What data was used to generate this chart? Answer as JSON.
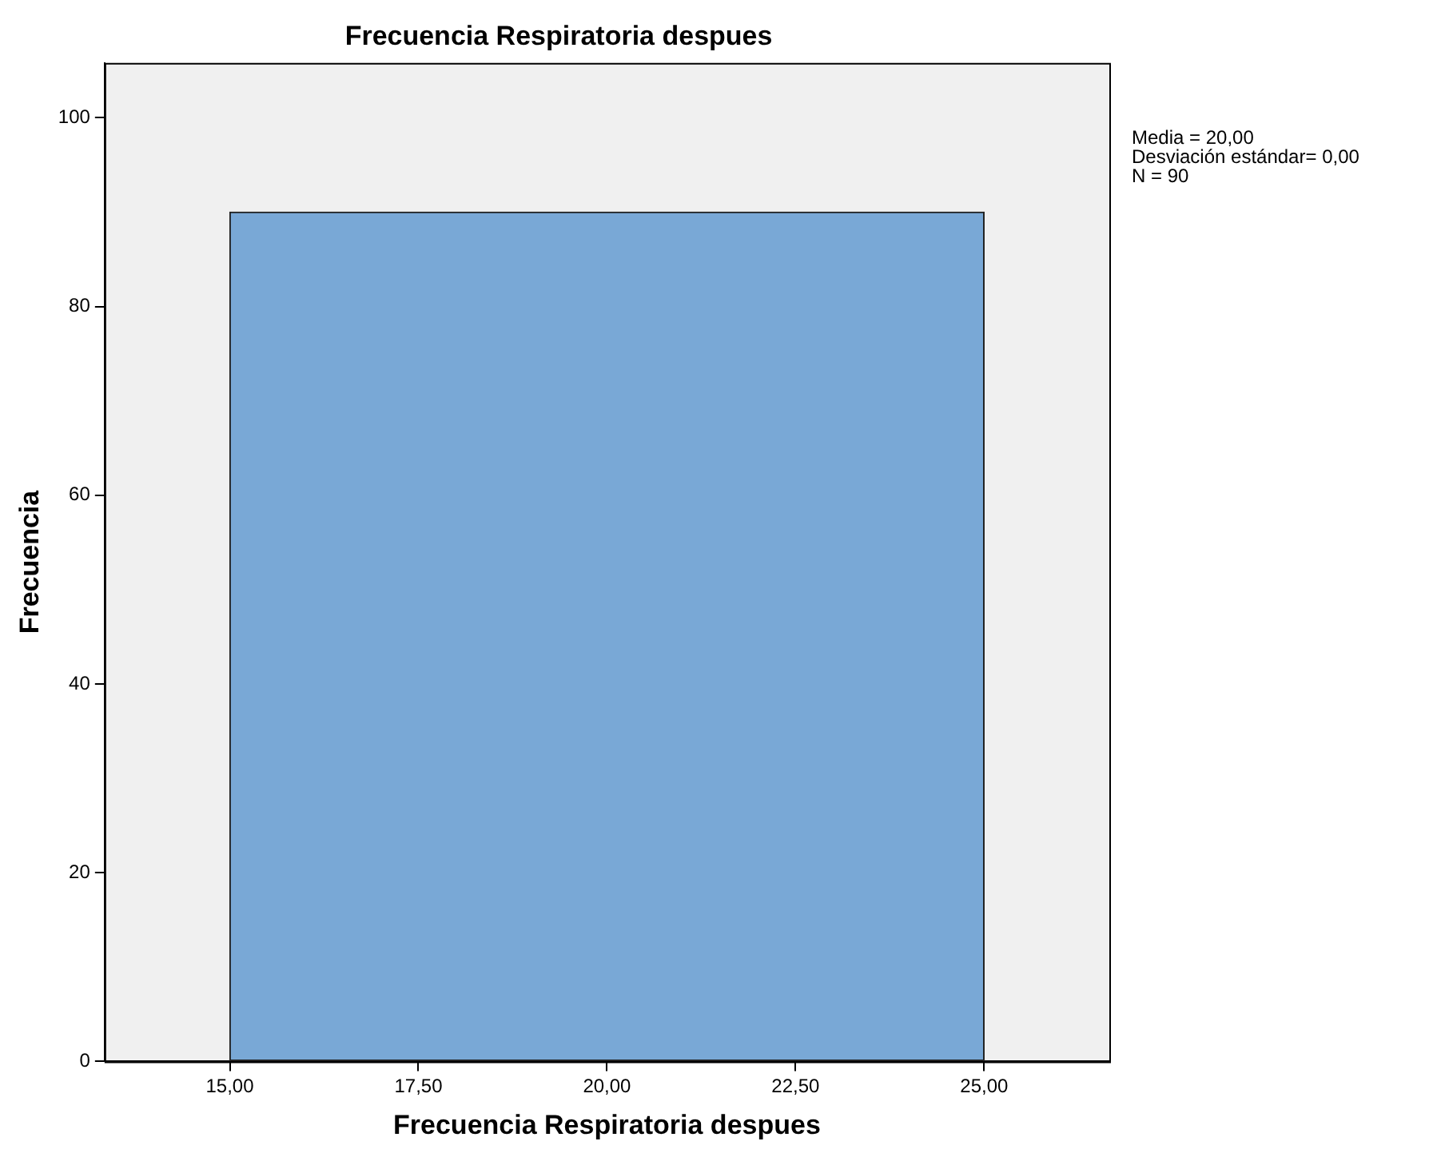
{
  "chart_data": {
    "type": "histogram",
    "title": "Frecuencia Respiratoria despues",
    "xlabel": "Frecuencia Respiratoria despues",
    "ylabel": "Frecuencia",
    "bins": [
      15,
      25
    ],
    "values": [
      90
    ],
    "color": "#79a8d6",
    "xlim": [
      13.34,
      26.66
    ],
    "xticks": [
      {
        "value": 15,
        "label": "15,00"
      },
      {
        "value": 17.5,
        "label": "17,50"
      },
      {
        "value": 20,
        "label": "20,00"
      },
      {
        "value": 22.5,
        "label": "22,50"
      },
      {
        "value": 25,
        "label": "25,00"
      }
    ],
    "ylim": [
      0,
      105.8
    ],
    "yticks": [
      0,
      20,
      40,
      60,
      80,
      100
    ],
    "grid": false,
    "legend": false,
    "annotations": [
      "Media = 20,00",
      "Desviación estándar= 0,00",
      "N = 90"
    ]
  }
}
